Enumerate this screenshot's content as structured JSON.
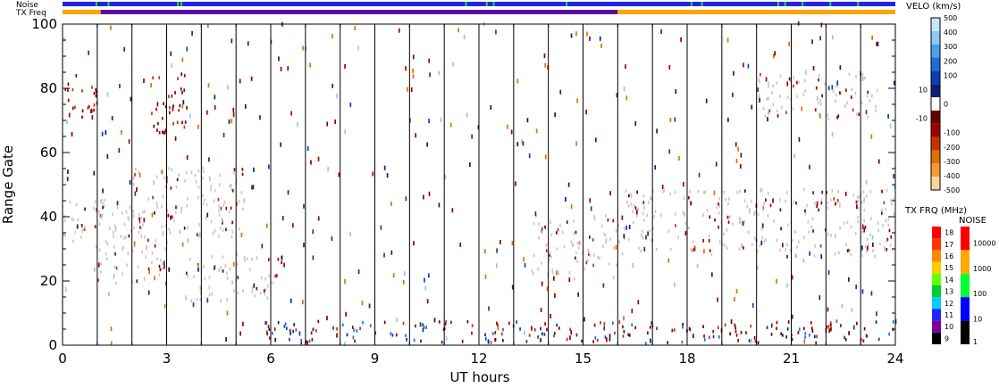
{
  "chart_data": {
    "type": "heatmap",
    "title": "",
    "xlabel": "UT hours",
    "ylabel": "Range Gate",
    "xlim": [
      0,
      24
    ],
    "ylim": [
      0,
      100
    ],
    "x_ticks": [
      0,
      3,
      6,
      9,
      12,
      15,
      18,
      21,
      24
    ],
    "y_ticks": [
      0,
      20,
      40,
      60,
      80,
      100
    ],
    "grid": "vertical lines at every hour",
    "strip_labels": {
      "noise": "Noise",
      "tx_freq": "TX Freq"
    },
    "velocity_colorbar": {
      "title": "VELO (km/s)",
      "tick_labels": [
        "500",
        "400",
        "300",
        "200",
        "100",
        "10",
        "0",
        "-10",
        "-100",
        "-200",
        "-300",
        "-400",
        "-500"
      ],
      "colors": [
        "#c9e6ff",
        "#8fc6f5",
        "#4aa0ec",
        "#1b6ed8",
        "#0a3fb3",
        "#07207a",
        "#ffffff",
        "#6b0000",
        "#a00000",
        "#c23300",
        "#e07000",
        "#f49b30",
        "#fbd4a0"
      ]
    },
    "txfreq_colorbar": {
      "title": "TX FRQ (MHz)",
      "tick_labels": [
        "18",
        "17",
        "16",
        "15",
        "14",
        "13",
        "12",
        "11",
        "10",
        "9"
      ],
      "colors": [
        "#ff0000",
        "#ff3300",
        "#ff8800",
        "#ffcc00",
        "#66ff00",
        "#00cc33",
        "#00ccff",
        "#2222ff",
        "#7a00a0",
        "#000000"
      ]
    },
    "noise_colorbar": {
      "title": "NOISE",
      "tick_labels": [
        "10000",
        "1000",
        "100",
        "10",
        "1"
      ],
      "colors": [
        "#ff0000",
        "#ffaa00",
        "#00ff33",
        "#0000ff",
        "#000000"
      ]
    },
    "tx_freq_segments": [
      {
        "start": 0,
        "end": 1.1,
        "color": "#ffa500"
      },
      {
        "start": 1.1,
        "end": 16.0,
        "color": "#5a0aa0"
      },
      {
        "start": 16.0,
        "end": 24,
        "color": "#ffa500"
      }
    ],
    "noise_strip_color": "#2222ee",
    "noise_green_marks": [
      0.95,
      1.3,
      3.3,
      3.4,
      11.6,
      12.2,
      12.4,
      14.5,
      18.1,
      18.4,
      20.6,
      20.8,
      21.3,
      22.1,
      22.9
    ],
    "ground_scatter_color": "#c8c8c8",
    "scatter_regions": [
      {
        "name": "ground-scatter-early-main",
        "x": [
          0.0,
          2.2
        ],
        "y": [
          30,
          45
        ],
        "kind": "ground"
      },
      {
        "name": "ground-scatter-early-lower",
        "x": [
          1.0,
          3.0
        ],
        "y": [
          18,
          35
        ],
        "kind": "ground"
      },
      {
        "name": "ground-scatter-diagonal",
        "x": [
          2.0,
          5.2
        ],
        "y": [
          33,
          55
        ],
        "kind": "ground"
      },
      {
        "name": "ground-scatter-mid",
        "x": [
          3.5,
          6.1
        ],
        "y": [
          13,
          28
        ],
        "kind": "ground"
      },
      {
        "name": "ionospheric-echo-6h",
        "x": [
          5.9,
          6.4
        ],
        "y": [
          19,
          27
        ],
        "kind": "neg"
      },
      {
        "name": "ionospheric-band-low",
        "x": [
          5.8,
          24.0
        ],
        "y": [
          0,
          7
        ],
        "kind": "mixed"
      },
      {
        "name": "ground-scatter-15h",
        "x": [
          13.5,
          16.0
        ],
        "y": [
          20,
          40
        ],
        "kind": "ground"
      },
      {
        "name": "ground-scatter-late",
        "x": [
          16.0,
          24.0
        ],
        "y": [
          27,
          48
        ],
        "kind": "ground"
      },
      {
        "name": "scatter-late-upper",
        "x": [
          20.0,
          23.5
        ],
        "y": [
          70,
          85
        ],
        "kind": "ground"
      },
      {
        "name": "scatter-early-top",
        "x": [
          0.0,
          1.0
        ],
        "y": [
          70,
          85
        ],
        "kind": "neg"
      },
      {
        "name": "scatter-3h-top",
        "x": [
          2.5,
          3.6
        ],
        "y": [
          65,
          85
        ],
        "kind": "neg"
      }
    ]
  }
}
